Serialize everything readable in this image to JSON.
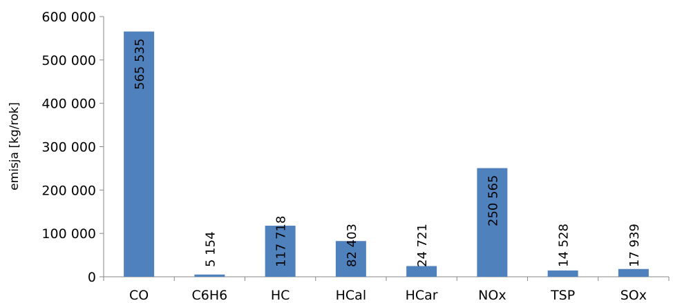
{
  "chart_data": {
    "type": "bar",
    "title": "",
    "xlabel": "",
    "ylabel": "emisja [kg/rok]",
    "categories": [
      "CO",
      "C6H6",
      "HC",
      "HCal",
      "HCar",
      "NOx",
      "TSP",
      "SOx"
    ],
    "values": [
      565535,
      5154,
      117718,
      82403,
      24721,
      250565,
      14528,
      17939
    ],
    "data_labels": [
      "565 535",
      "5 154",
      "117 718",
      "82 403",
      "24 721",
      "250 565",
      "14 528",
      "17 939"
    ],
    "ylim": [
      0,
      600000
    ],
    "yticks": [
      0,
      100000,
      200000,
      300000,
      400000,
      500000,
      600000
    ],
    "ytick_labels": [
      "0",
      "100 000",
      "200 000",
      "300 000",
      "400 000",
      "500 000",
      "600 000"
    ],
    "grid": false,
    "legend": "none",
    "bar_color": "#4f81bd",
    "data_label_orientation": "vertical"
  }
}
